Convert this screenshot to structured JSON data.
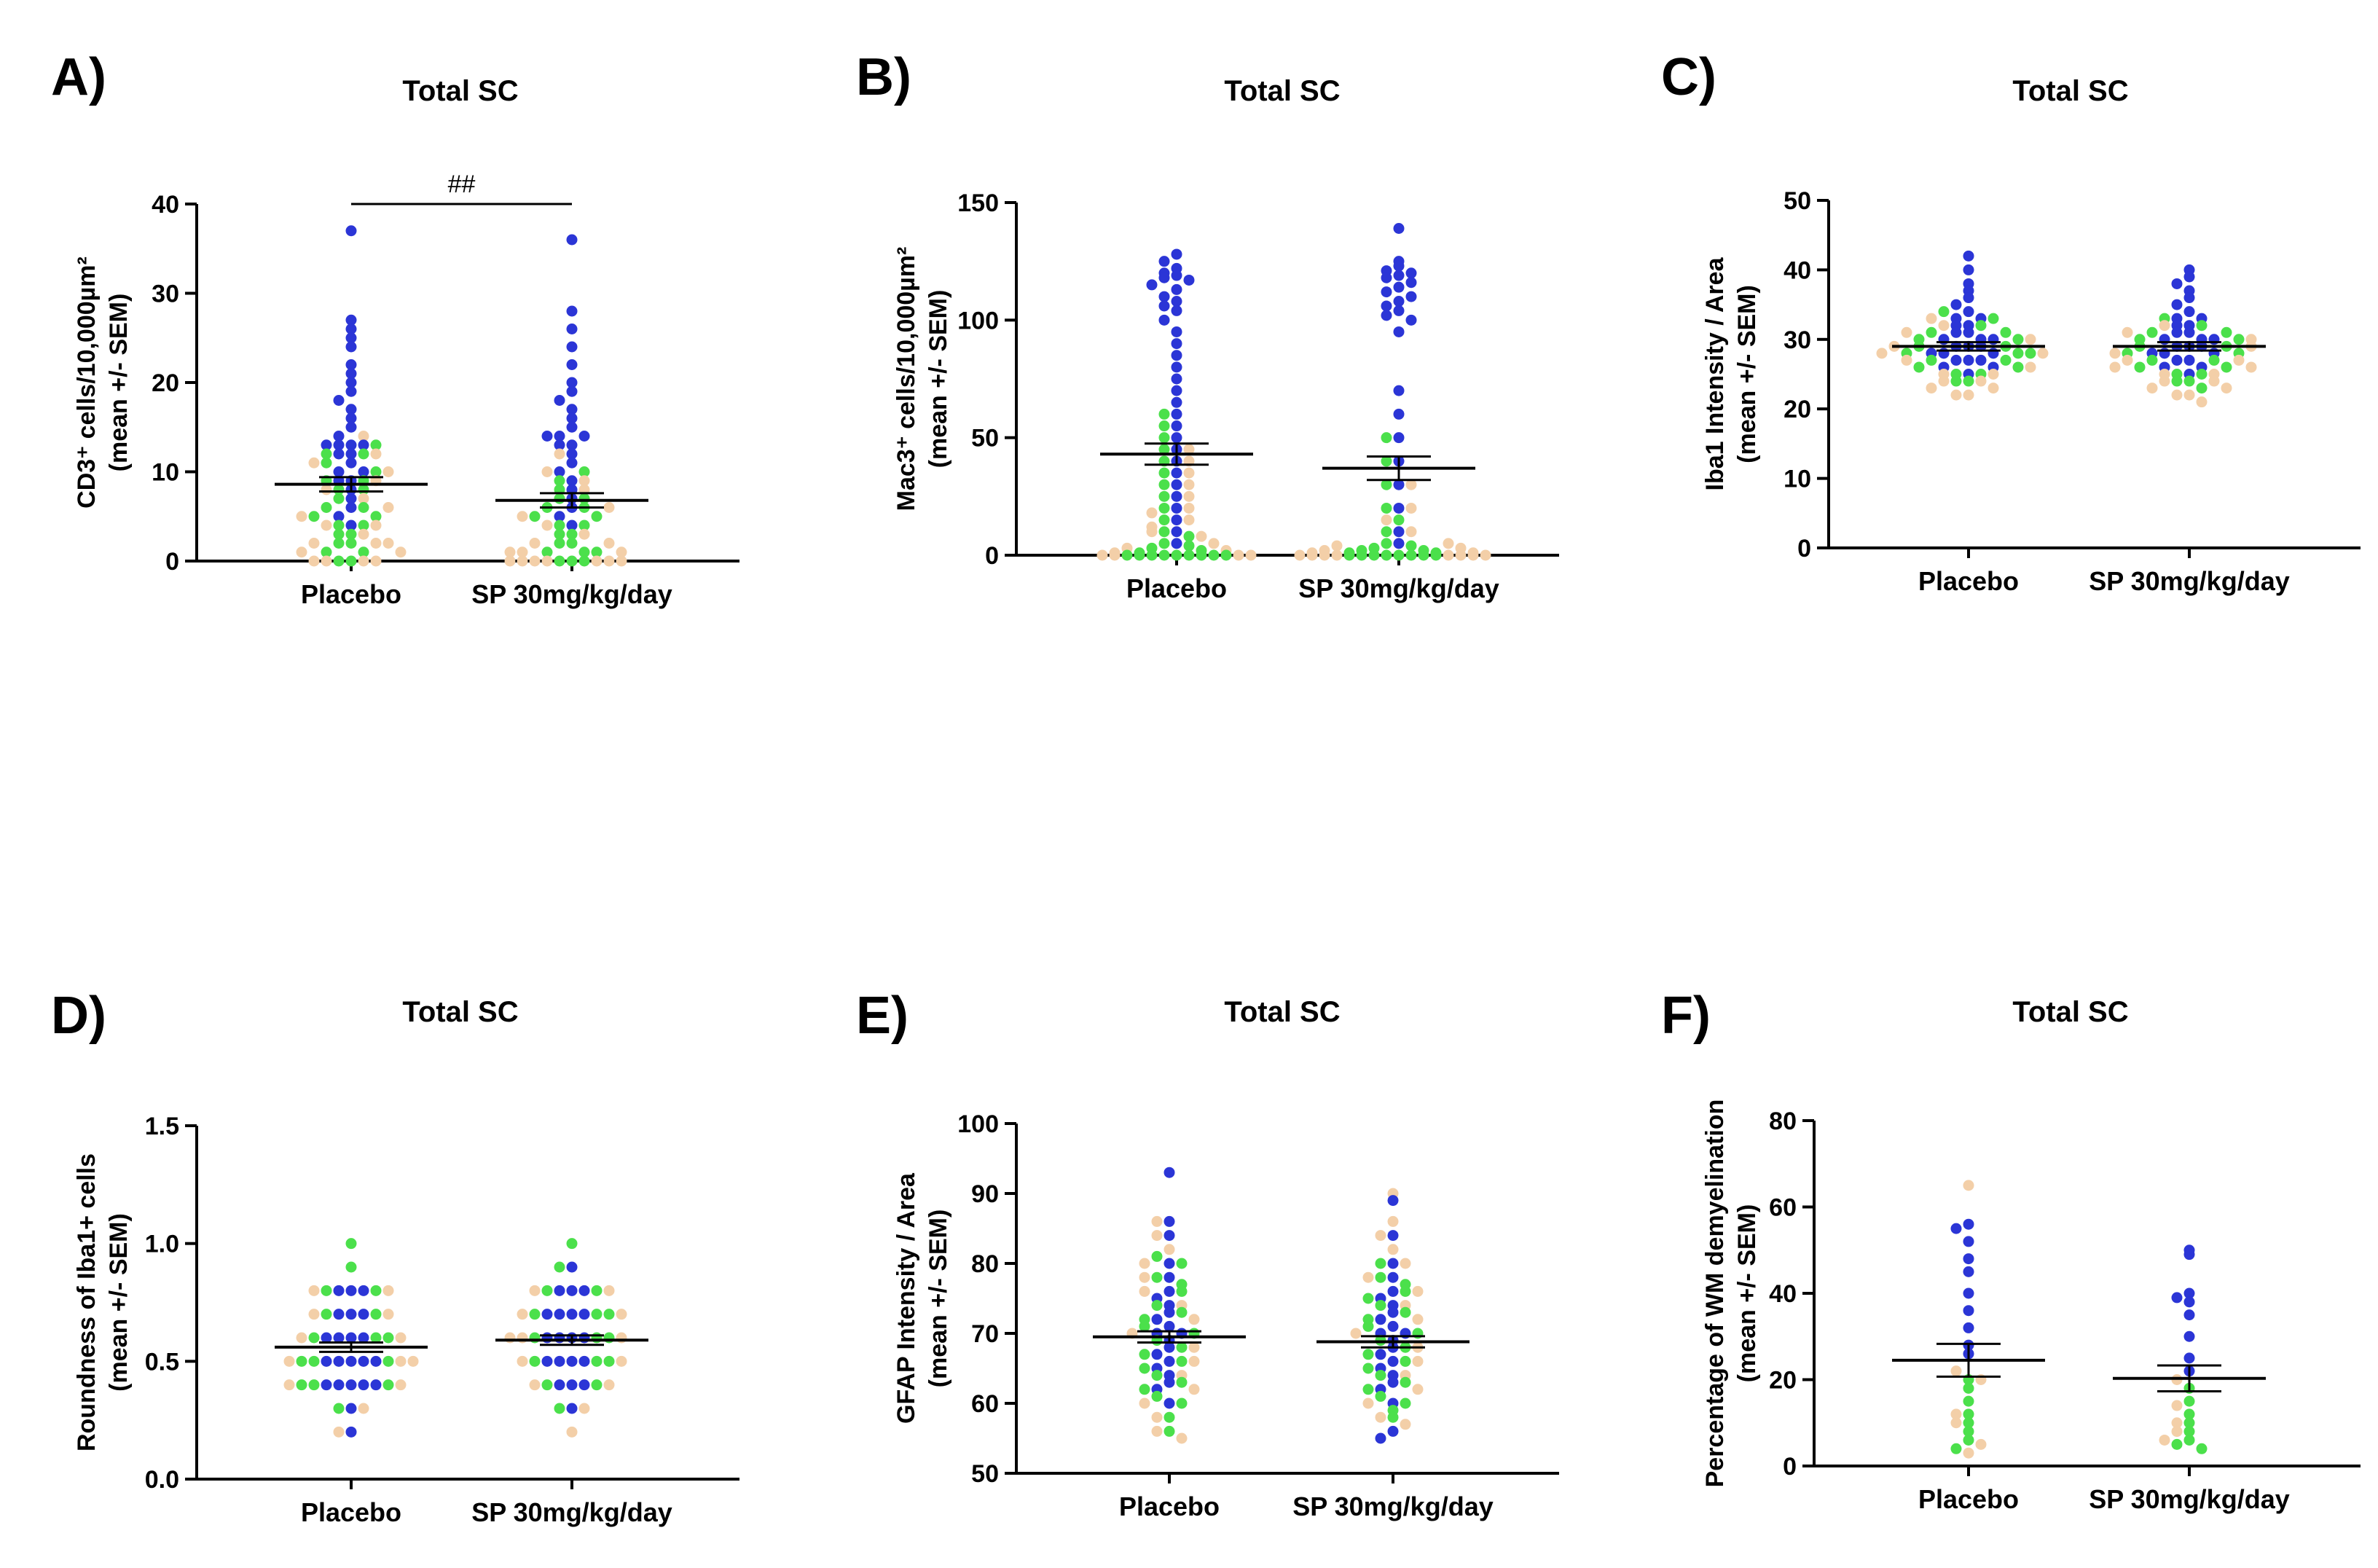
{
  "colors": {
    "blue": "#2b35d6",
    "green": "#4be04b",
    "tan": "#f3cfa8"
  },
  "chart_data": [
    {
      "type": "scatter",
      "panel": "A)",
      "title": "Total SC",
      "ylabel_lines": [
        "CD3⁺ cells/10,000µm²",
        "(mean +/- SEM)"
      ],
      "categories": [
        "Placebo",
        "SP 30mg/kg/day"
      ],
      "ylim": [
        0,
        40
      ],
      "yticks": [
        0,
        10,
        20,
        30,
        40
      ],
      "means": [
        8.6,
        6.8
      ],
      "sem": [
        0.8,
        0.8
      ],
      "significance": {
        "label": "##",
        "between": [
          0,
          1
        ],
        "y": 40
      },
      "series": [
        {
          "name": "blue",
          "color": "#2b35d6",
          "values": [
            [
              37,
              27,
              26,
              25,
              24,
              22,
              21,
              20,
              19,
              18,
              17,
              16,
              15,
              14,
              13,
              13,
              13,
              13,
              12,
              12,
              11,
              10,
              10,
              9,
              9,
              8,
              7,
              6,
              5,
              4
            ],
            [
              36,
              28,
              26,
              24,
              22,
              20,
              19,
              18,
              17,
              16,
              15,
              14,
              14,
              14,
              13,
              13,
              12,
              11,
              10,
              9,
              8,
              7,
              6,
              5,
              4
            ]
          ]
        },
        {
          "name": "green",
          "color": "#4be04b",
          "values": [
            [
              13,
              12,
              12,
              11,
              10,
              9,
              9,
              8,
              8,
              7,
              6,
              6,
              5,
              5,
              4,
              4,
              3,
              3,
              2,
              2,
              1,
              1,
              0,
              0
            ],
            [
              10,
              9,
              8,
              7,
              7,
              6,
              6,
              5,
              5,
              4,
              4,
              3,
              3,
              2,
              2,
              1,
              1,
              1,
              0,
              0,
              0
            ]
          ]
        },
        {
          "name": "tan",
          "color": "#f3cfa8",
          "values": [
            [
              14,
              12,
              11,
              10,
              9,
              8,
              7,
              6,
              5,
              4,
              4,
              3,
              2,
              2,
              2,
              1,
              1,
              0,
              0,
              0,
              0
            ],
            [
              12,
              10,
              9,
              8,
              6,
              5,
              4,
              3,
              2,
              2,
              1,
              1,
              1,
              0,
              0,
              0,
              0,
              0,
              0,
              0
            ]
          ]
        }
      ]
    },
    {
      "type": "scatter",
      "panel": "B)",
      "title": "Total SC",
      "ylabel_lines": [
        "Mac3⁺ cells/10,000µm²",
        "(mean +/- SEM)"
      ],
      "categories": [
        "Placebo",
        "SP 30mg/kg/day"
      ],
      "ylim": [
        0,
        150
      ],
      "yticks": [
        0,
        50,
        100,
        150
      ],
      "means": [
        43,
        37
      ],
      "sem": [
        4.5,
        5
      ],
      "series": [
        {
          "name": "blue",
          "color": "#2b35d6",
          "values": [
            [
              128,
              125,
              122,
              120,
              119,
              118,
              117,
              115,
              113,
              110,
              108,
              106,
              104,
              100,
              95,
              90,
              85,
              80,
              75,
              70,
              65,
              60,
              55,
              50,
              45,
              40,
              35,
              30,
              25,
              20,
              15,
              10,
              5
            ],
            [
              139,
              125,
              123,
              121,
              120,
              119,
              118,
              116,
              114,
              112,
              110,
              108,
              106,
              104,
              102,
              100,
              95,
              70,
              60,
              50,
              40,
              30,
              20,
              10,
              5
            ]
          ]
        },
        {
          "name": "green",
          "color": "#4be04b",
          "values": [
            [
              60,
              55,
              50,
              45,
              40,
              35,
              30,
              25,
              20,
              15,
              10,
              8,
              5,
              4,
              3,
              2,
              1,
              0,
              0,
              0,
              0,
              0,
              0,
              0,
              0,
              0
            ],
            [
              50,
              40,
              30,
              20,
              15,
              10,
              5,
              4,
              3,
              2,
              2,
              1,
              1,
              0,
              0,
              0,
              0,
              0,
              0,
              0,
              0
            ]
          ]
        },
        {
          "name": "tan",
          "color": "#f3cfa8",
          "values": [
            [
              45,
              40,
              35,
              30,
              25,
              20,
              18,
              15,
              12,
              10,
              8,
              5,
              3,
              2,
              1,
              0,
              0,
              0,
              0
            ],
            [
              30,
              20,
              15,
              10,
              5,
              4,
              3,
              2,
              1,
              1,
              0,
              0,
              0,
              0,
              0,
              0,
              0,
              0
            ]
          ]
        }
      ]
    },
    {
      "type": "scatter",
      "panel": "C)",
      "title": "Total SC",
      "ylabel_lines": [
        "Iba1 Intensity / Area",
        "(mean +/- SEM)"
      ],
      "categories": [
        "Placebo",
        "SP 30mg/kg/day"
      ],
      "ylim": [
        0,
        50
      ],
      "yticks": [
        0,
        10,
        20,
        30,
        40,
        50
      ],
      "means": [
        29,
        29
      ],
      "sem": [
        0.6,
        0.6
      ],
      "series": [
        {
          "name": "blue",
          "color": "#2b35d6",
          "values": [
            [
              42,
              40,
              38,
              37,
              36,
              35,
              34,
              33,
              33,
              32,
              32,
              31,
              31,
              30,
              30,
              30,
              29,
              29,
              29,
              28,
              28,
              28,
              27,
              27,
              27,
              26,
              26,
              25
            ],
            [
              40,
              39,
              38,
              37,
              36,
              35,
              34,
              33,
              33,
              32,
              32,
              31,
              31,
              30,
              30,
              30,
              29,
              29,
              29,
              28,
              28,
              28,
              27,
              27,
              26,
              26,
              25
            ]
          ]
        },
        {
          "name": "green",
          "color": "#4be04b",
          "values": [
            [
              34,
              33,
              32,
              31,
              31,
              30,
              30,
              29,
              29,
              28,
              28,
              28,
              27,
              27,
              26,
              26,
              25,
              25,
              24,
              24
            ],
            [
              33,
              32,
              31,
              31,
              30,
              30,
              29,
              29,
              28,
              28,
              27,
              27,
              26,
              26,
              25,
              25,
              24,
              24,
              23
            ]
          ]
        },
        {
          "name": "tan",
          "color": "#f3cfa8",
          "values": [
            [
              33,
              32,
              31,
              30,
              29,
              28,
              28,
              27,
              26,
              25,
              25,
              24,
              24,
              23,
              23,
              22,
              22
            ],
            [
              32,
              31,
              30,
              29,
              28,
              27,
              27,
              26,
              26,
              25,
              25,
              24,
              24,
              23,
              23,
              22,
              22,
              21
            ]
          ]
        }
      ]
    },
    {
      "type": "scatter",
      "panel": "D)",
      "title": "Total SC",
      "ylabel_lines": [
        "Roundness of Iba1+ cells",
        "(mean +/- SEM)"
      ],
      "categories": [
        "Placebo",
        "SP 30mg/kg/day"
      ],
      "ylim": [
        0,
        1.5
      ],
      "yticks": [
        0,
        0.5,
        1.0,
        1.5
      ],
      "ytick_labels": [
        "0.0",
        "0.5",
        "1.0",
        "1.5"
      ],
      "means": [
        0.56,
        0.59
      ],
      "sem": [
        0.02,
        0.02
      ],
      "series": [
        {
          "name": "blue",
          "color": "#2b35d6",
          "values": [
            [
              0.8,
              0.8,
              0.8,
              0.7,
              0.7,
              0.7,
              0.6,
              0.6,
              0.6,
              0.6,
              0.5,
              0.5,
              0.5,
              0.5,
              0.5,
              0.4,
              0.4,
              0.4,
              0.4,
              0.4,
              0.3,
              0.2
            ],
            [
              0.9,
              0.8,
              0.8,
              0.8,
              0.7,
              0.7,
              0.7,
              0.7,
              0.6,
              0.6,
              0.6,
              0.6,
              0.5,
              0.5,
              0.5,
              0.5,
              0.4,
              0.4,
              0.4,
              0.3
            ]
          ]
        },
        {
          "name": "green",
          "color": "#4be04b",
          "values": [
            [
              1.0,
              0.9,
              0.8,
              0.8,
              0.7,
              0.7,
              0.6,
              0.6,
              0.6,
              0.5,
              0.5,
              0.5,
              0.4,
              0.4,
              0.4,
              0.3
            ],
            [
              1.0,
              0.9,
              0.8,
              0.8,
              0.7,
              0.7,
              0.7,
              0.6,
              0.6,
              0.6,
              0.5,
              0.5,
              0.5,
              0.4,
              0.4,
              0.3
            ]
          ]
        },
        {
          "name": "tan",
          "color": "#f3cfa8",
          "values": [
            [
              0.8,
              0.8,
              0.7,
              0.7,
              0.6,
              0.6,
              0.5,
              0.5,
              0.5,
              0.4,
              0.4,
              0.3,
              0.2
            ],
            [
              0.8,
              0.8,
              0.7,
              0.7,
              0.6,
              0.6,
              0.6,
              0.5,
              0.5,
              0.4,
              0.4,
              0.3,
              0.2
            ]
          ]
        }
      ]
    },
    {
      "type": "scatter",
      "panel": "E)",
      "title": "Total SC",
      "ylabel_lines": [
        "GFAP Intensity / Area",
        "(mean +/- SEM)"
      ],
      "categories": [
        "Placebo",
        "SP 30mg/kg/day"
      ],
      "ylim": [
        50,
        100
      ],
      "yticks": [
        50,
        60,
        70,
        80,
        90,
        100
      ],
      "means": [
        69.5,
        68.8
      ],
      "sem": [
        0.8,
        0.8
      ],
      "series": [
        {
          "name": "blue",
          "color": "#2b35d6",
          "values": [
            [
              93,
              86,
              84,
              80,
              78,
              76,
              75,
              74,
              73,
              72,
              71,
              70,
              70,
              69,
              68,
              67,
              66,
              65,
              64,
              63,
              62,
              60
            ],
            [
              89,
              84,
              80,
              78,
              76,
              75,
              74,
              73,
              72,
              71,
              70,
              70,
              69,
              68,
              67,
              66,
              65,
              64,
              63,
              62,
              60,
              56,
              55
            ]
          ]
        },
        {
          "name": "green",
          "color": "#4be04b",
          "values": [
            [
              81,
              80,
              78,
              77,
              76,
              74,
              73,
              72,
              71,
              70,
              69,
              68,
              67,
              66,
              65,
              64,
              63,
              62,
              61,
              60,
              58,
              56
            ],
            [
              80,
              78,
              77,
              76,
              75,
              74,
              73,
              72,
              71,
              70,
              69,
              68,
              67,
              66,
              65,
              64,
              63,
              62,
              61,
              60,
              59,
              58
            ]
          ]
        },
        {
          "name": "tan",
          "color": "#f3cfa8",
          "values": [
            [
              86,
              84,
              82,
              80,
              78,
              76,
              74,
              72,
              70,
              68,
              66,
              64,
              62,
              60,
              58,
              56,
              55
            ],
            [
              90,
              86,
              84,
              82,
              80,
              78,
              76,
              74,
              72,
              70,
              68,
              66,
              64,
              62,
              60,
              58,
              57
            ]
          ]
        }
      ]
    },
    {
      "type": "scatter",
      "panel": "F)",
      "title": "Total SC",
      "ylabel_lines": [
        "Percentage of WM demyelination",
        "(mean +/- SEM)"
      ],
      "categories": [
        "Placebo",
        "SP 30mg/kg/day"
      ],
      "ylim": [
        0,
        80
      ],
      "yticks": [
        0,
        20,
        40,
        60,
        80
      ],
      "means": [
        24.5,
        20.3
      ],
      "sem": [
        3.8,
        3.0
      ],
      "series": [
        {
          "name": "blue",
          "color": "#2b35d6",
          "values": [
            [
              56,
              55,
              52,
              48,
              45,
              40,
              36,
              32,
              28,
              26
            ],
            [
              50,
              49,
              40,
              39,
              38,
              35,
              30,
              25,
              22
            ]
          ]
        },
        {
          "name": "green",
          "color": "#4be04b",
          "values": [
            [
              20,
              18,
              15,
              12,
              10,
              8,
              6,
              4
            ],
            [
              18,
              15,
              12,
              10,
              8,
              6,
              5,
              4
            ]
          ]
        },
        {
          "name": "tan",
          "color": "#f3cfa8",
          "values": [
            [
              65,
              22,
              20,
              12,
              10,
              5,
              3
            ],
            [
              20,
              14,
              10,
              8,
              6
            ]
          ]
        }
      ]
    }
  ]
}
